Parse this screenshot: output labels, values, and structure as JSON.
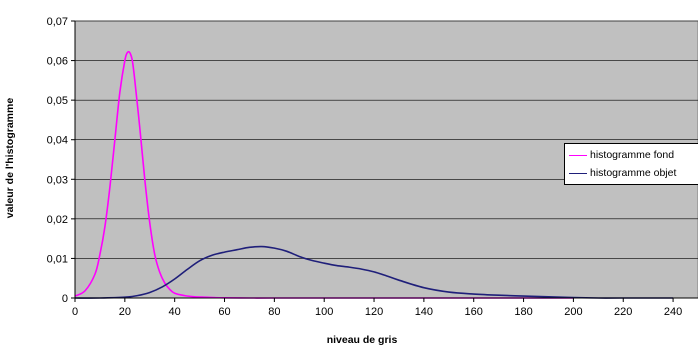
{
  "chart_data": {
    "type": "line",
    "title": "",
    "xlabel": "niveau de gris",
    "ylabel": "valeur de l'histogramme",
    "xlim": [
      0,
      255
    ],
    "ylim": [
      0,
      0.07
    ],
    "x_ticks": [
      "0",
      "20",
      "40",
      "60",
      "80",
      "100",
      "120",
      "140",
      "160",
      "180",
      "200",
      "220",
      "240"
    ],
    "y_ticks": [
      "0",
      "0,01",
      "0,02",
      "0,03",
      "0,04",
      "0,05",
      "0,06",
      "0,07"
    ],
    "grid": true,
    "plot_background": "#c0c0c0",
    "legend_position": "right",
    "series": [
      {
        "name": "histogramme fond",
        "color": "#ff00ff",
        "x": [
          0,
          4,
          8,
          10,
          12,
          14,
          16,
          18,
          20,
          21,
          22,
          23,
          24,
          26,
          28,
          30,
          32,
          34,
          36,
          38,
          40,
          44,
          48,
          52,
          56,
          60,
          70,
          80,
          100,
          150,
          200,
          255
        ],
        "y": [
          0.0005,
          0.0018,
          0.006,
          0.011,
          0.018,
          0.028,
          0.04,
          0.052,
          0.06,
          0.062,
          0.062,
          0.06,
          0.055,
          0.043,
          0.03,
          0.019,
          0.011,
          0.0065,
          0.0038,
          0.0022,
          0.0012,
          0.0006,
          0.0003,
          0.0002,
          0.0001,
          5e-05,
          0,
          0,
          0,
          0,
          0,
          0
        ]
      },
      {
        "name": "histogramme objet",
        "color": "#1f1f7a",
        "x": [
          0,
          10,
          20,
          25,
          30,
          35,
          40,
          45,
          50,
          55,
          60,
          65,
          70,
          75,
          80,
          85,
          90,
          95,
          100,
          105,
          110,
          115,
          120,
          125,
          130,
          140,
          150,
          160,
          170,
          180,
          190,
          200,
          210,
          220,
          240,
          255
        ],
        "y": [
          0,
          0,
          0.0002,
          0.0006,
          0.0014,
          0.0028,
          0.0048,
          0.0072,
          0.0094,
          0.0108,
          0.0116,
          0.0122,
          0.0128,
          0.013,
          0.0126,
          0.0118,
          0.0105,
          0.0095,
          0.0088,
          0.0082,
          0.0078,
          0.0073,
          0.0066,
          0.0056,
          0.0045,
          0.0026,
          0.0015,
          0.001,
          0.0007,
          0.0005,
          0.0003,
          0.0001,
          0,
          0,
          0,
          0
        ]
      }
    ]
  }
}
